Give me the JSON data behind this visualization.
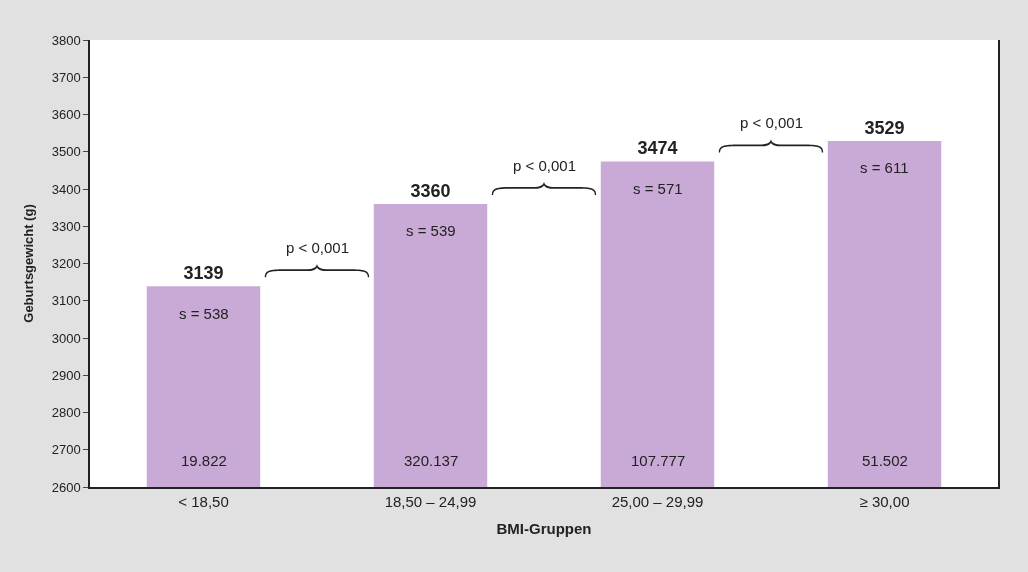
{
  "chart_data": {
    "type": "bar",
    "xlabel": "BMI-Gruppen",
    "ylabel": "Geburtsgewicht (g)",
    "categories": [
      "< 18,50",
      "18,50 – 24,99",
      "25,00 – 29,99",
      "≥ 30,00"
    ],
    "values": [
      3139,
      3360,
      3474,
      3529
    ],
    "color": "#c9aad6",
    "ylim": [
      2600,
      3800
    ],
    "yticks": [
      2600,
      2700,
      2800,
      2900,
      3000,
      3100,
      3200,
      3300,
      3400,
      3500,
      3600,
      3700,
      3800
    ],
    "data_labels": true,
    "annotations": [
      "s = 538",
      "s = 539",
      "s = 571",
      "s = 611",
      "19.822",
      "320.137",
      "107.777",
      "51.502",
      "p < 0,001",
      "p < 0,001",
      "p < 0,001"
    ]
  }
}
